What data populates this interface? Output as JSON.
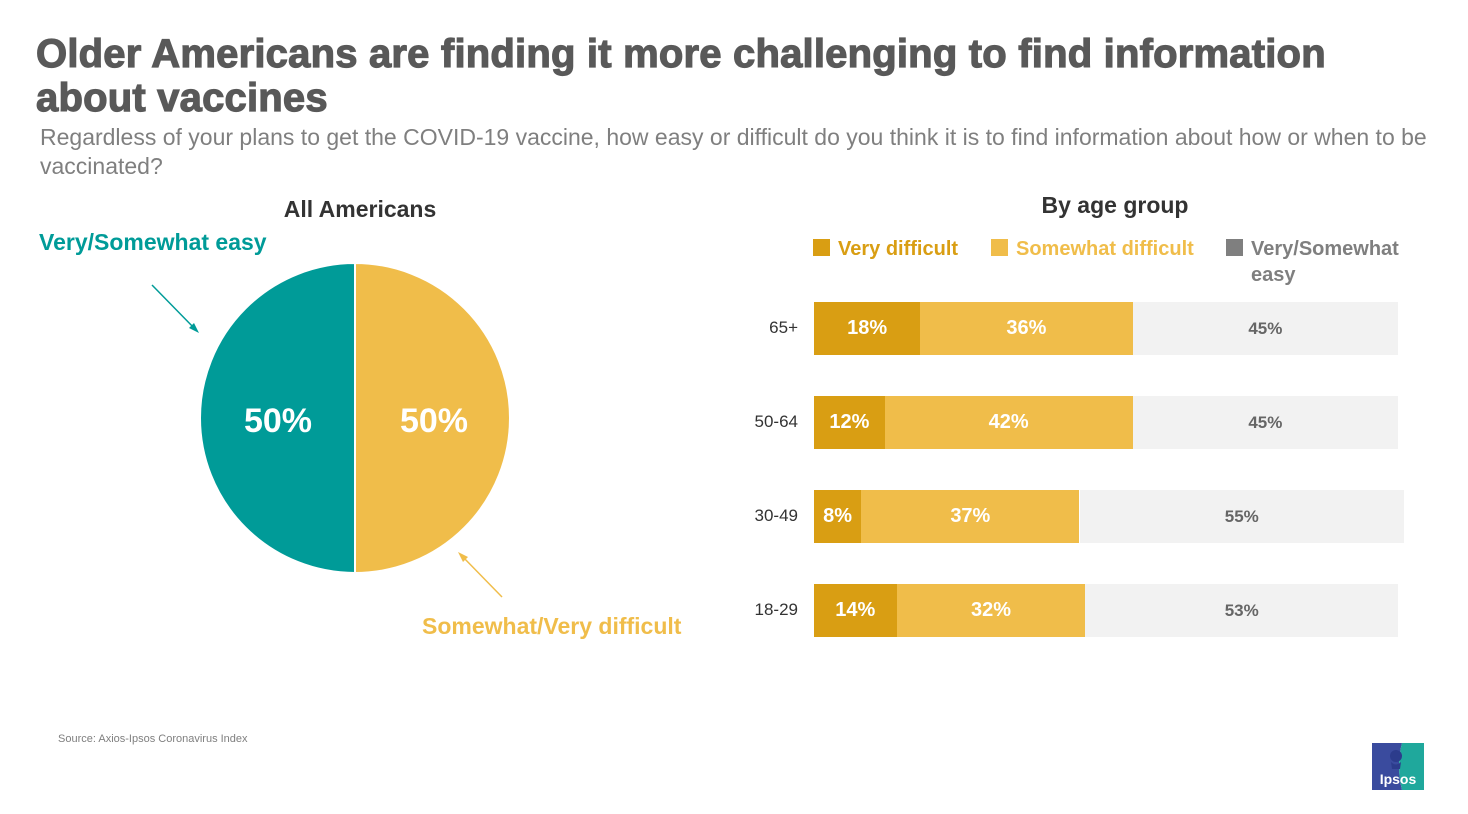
{
  "title": "Older Americans are finding it more challenging to find information about vaccines",
  "subtitle": "Regardless of your plans to get the COVID-19 vaccine, how easy or difficult do you think it is to find information about how or when to be vaccinated?",
  "source": "Source: Axios-Ipsos Coronavirus Index",
  "logo_text": "Ipsos",
  "colors": {
    "teal": "#009b98",
    "very_difficult": "#d99e13",
    "somewhat_difficult": "#f0bd4a",
    "easy_bar": "#f2f2f2",
    "easy_legend": "#7f7f7f"
  },
  "chart_data": [
    {
      "type": "pie",
      "title": "All Americans",
      "slices": [
        {
          "label": "Very/Somewhat easy",
          "value": 50,
          "data_label": "50%",
          "color": "#009b98"
        },
        {
          "label": "Somewhat/Very difficult",
          "value": 50,
          "data_label": "50%",
          "color": "#f0bd4a"
        }
      ],
      "annotations": [
        "Very/Somewhat easy",
        "Somewhat/Very difficult"
      ]
    },
    {
      "type": "bar",
      "orientation": "horizontal",
      "stacked": true,
      "title": "By age group",
      "legend_position": "top",
      "categories": [
        "65+",
        "50-64",
        "30-49",
        "18-29"
      ],
      "series": [
        {
          "name": "Very difficult",
          "color": "#d99e13",
          "values": [
            18,
            12,
            8,
            14
          ],
          "labels": [
            "18%",
            "12%",
            "8%",
            "14%"
          ]
        },
        {
          "name": "Somewhat difficult",
          "color": "#f0bd4a",
          "values": [
            36,
            42,
            37,
            32
          ],
          "labels": [
            "36%",
            "42%",
            "37%",
            "32%"
          ]
        },
        {
          "name": "Very/Somewhat easy",
          "color": "#f2f2f2",
          "legend_color": "#7f7f7f",
          "values": [
            45,
            45,
            55,
            53
          ],
          "labels": [
            "45%",
            "45%",
            "55%",
            "53%"
          ]
        }
      ],
      "xlim": [
        0,
        100
      ]
    }
  ]
}
